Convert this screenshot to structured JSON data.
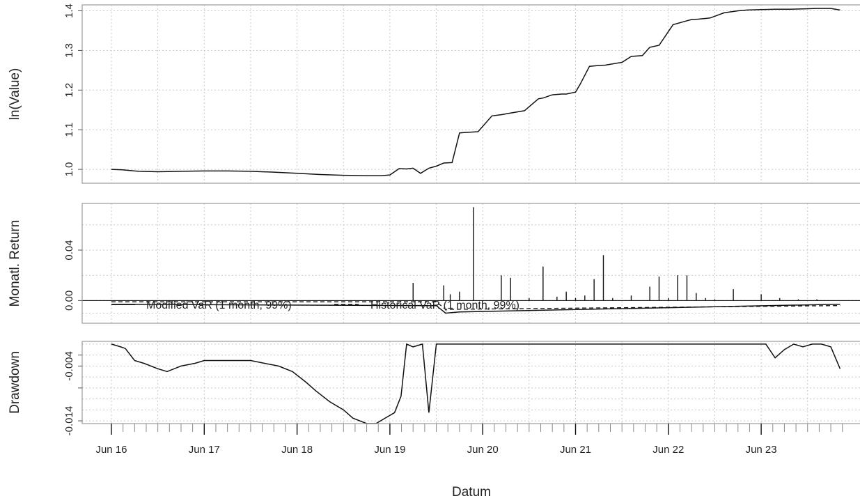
{
  "chart_data": [
    {
      "type": "line",
      "ylabel": "ln(Value)",
      "yticks": [
        "1.0",
        "1.1",
        "1.2",
        "1.3",
        "1.4"
      ],
      "ylim": [
        0.965,
        1.415
      ],
      "x": [
        0,
        0.12,
        0.25,
        0.3,
        0.5,
        0.75,
        1.0,
        1.25,
        1.5,
        1.75,
        2.0,
        2.25,
        2.5,
        2.75,
        2.9,
        3.0,
        3.1,
        3.18,
        3.25,
        3.33,
        3.42,
        3.5,
        3.58,
        3.67,
        3.75,
        3.8,
        3.88,
        3.95,
        4.1,
        4.2,
        4.3,
        4.45,
        4.6,
        4.65,
        4.75,
        4.85,
        4.9,
        5.0,
        5.05,
        5.15,
        5.25,
        5.32,
        5.5,
        5.6,
        5.72,
        5.8,
        5.9,
        6.05,
        6.2,
        6.25,
        6.32,
        6.45,
        6.6,
        6.75,
        6.85,
        7.0,
        7.15,
        7.3,
        7.45,
        7.6,
        7.75,
        7.85
      ],
      "values": [
        1.0,
        0.999,
        0.996,
        0.995,
        0.994,
        0.995,
        0.996,
        0.996,
        0.995,
        0.993,
        0.99,
        0.987,
        0.985,
        0.984,
        0.984,
        0.986,
        1.002,
        1.001,
        1.003,
        0.99,
        1.003,
        1.008,
        1.016,
        1.017,
        1.092,
        1.093,
        1.094,
        1.095,
        1.135,
        1.138,
        1.142,
        1.148,
        1.178,
        1.18,
        1.188,
        1.19,
        1.19,
        1.195,
        1.215,
        1.26,
        1.262,
        1.263,
        1.27,
        1.285,
        1.287,
        1.308,
        1.313,
        1.365,
        1.375,
        1.378,
        1.379,
        1.382,
        1.395,
        1.4,
        1.402,
        1.403,
        1.404,
        1.404,
        1.405,
        1.406,
        1.406,
        1.402
      ]
    },
    {
      "type": "bar",
      "ylabel": "Monatl. Return",
      "yticks": [
        "0.00",
        "0.04"
      ],
      "ylim": [
        -0.018,
        0.077
      ],
      "x": [
        3.25,
        3.58,
        3.65,
        3.75,
        3.9,
        4.2,
        4.3,
        4.5,
        4.65,
        4.8,
        4.9,
        5.0,
        5.1,
        5.2,
        5.3,
        5.4,
        5.6,
        5.8,
        5.9,
        6.0,
        6.1,
        6.2,
        6.3,
        6.4,
        6.5,
        6.7,
        7.0,
        7.2,
        7.4,
        7.6
      ],
      "values": [
        0.014,
        0.012,
        0.005,
        0.007,
        0.074,
        0.02,
        0.018,
        0.002,
        0.027,
        0.003,
        0.007,
        0.002,
        0.004,
        0.017,
        0.036,
        0.002,
        0.004,
        0.011,
        0.019,
        0.002,
        0.02,
        0.02,
        0.006,
        0.002,
        0.001,
        0.009,
        0.005,
        0.002,
        0.001,
        0.001
      ],
      "var_modified": {
        "x": [
          0,
          3.5,
          3.6,
          3.75,
          7.8,
          7.85
        ],
        "values": [
          -0.003,
          -0.004,
          -0.01,
          -0.009,
          -0.003,
          -0.003
        ]
      },
      "var_historical": {
        "x": [
          0,
          3.5,
          3.6,
          7.8,
          7.85
        ],
        "values": [
          -0.001,
          -0.001,
          -0.007,
          -0.004,
          -0.004
        ]
      },
      "legend": [
        "Modified VaR (1 month, 99%)",
        "Historical VaR (1 month, 99%)"
      ]
    },
    {
      "type": "line",
      "ylabel": "Drawdown",
      "yticks": [
        "-0.014",
        "-0.004"
      ],
      "ylim": [
        -0.0145,
        0.0005
      ],
      "x": [
        0,
        0.1,
        0.15,
        0.25,
        0.35,
        0.5,
        0.6,
        0.75,
        0.9,
        1.0,
        1.1,
        1.25,
        1.5,
        1.65,
        1.8,
        1.95,
        2.1,
        2.2,
        2.35,
        2.5,
        2.6,
        2.75,
        2.85,
        2.95,
        3.05,
        3.12,
        3.18,
        3.25,
        3.35,
        3.42,
        3.5,
        3.58,
        7.05,
        7.15,
        7.25,
        7.35,
        7.45,
        7.55,
        7.65,
        7.75,
        7.85
      ],
      "values": [
        0.0,
        -0.0005,
        -0.0008,
        -0.003,
        -0.0035,
        -0.0045,
        -0.005,
        -0.004,
        -0.0035,
        -0.003,
        -0.003,
        -0.003,
        -0.003,
        -0.0035,
        -0.004,
        -0.005,
        -0.007,
        -0.0085,
        -0.0105,
        -0.012,
        -0.0135,
        -0.0145,
        -0.0145,
        -0.0135,
        -0.0125,
        -0.0095,
        0.0,
        -0.0005,
        0.0,
        -0.0125,
        0.0,
        0.0,
        0.0,
        -0.0025,
        -0.001,
        0.0,
        -0.0005,
        0.0,
        0.0,
        -0.0005,
        -0.0045
      ]
    }
  ],
  "x_axis": {
    "title": "Datum",
    "tick_labels": [
      "Jun 16",
      "Jun 17",
      "Jun 18",
      "Jun 19",
      "Jun 20",
      "Jun 21",
      "Jun 22",
      "Jun 23"
    ]
  }
}
